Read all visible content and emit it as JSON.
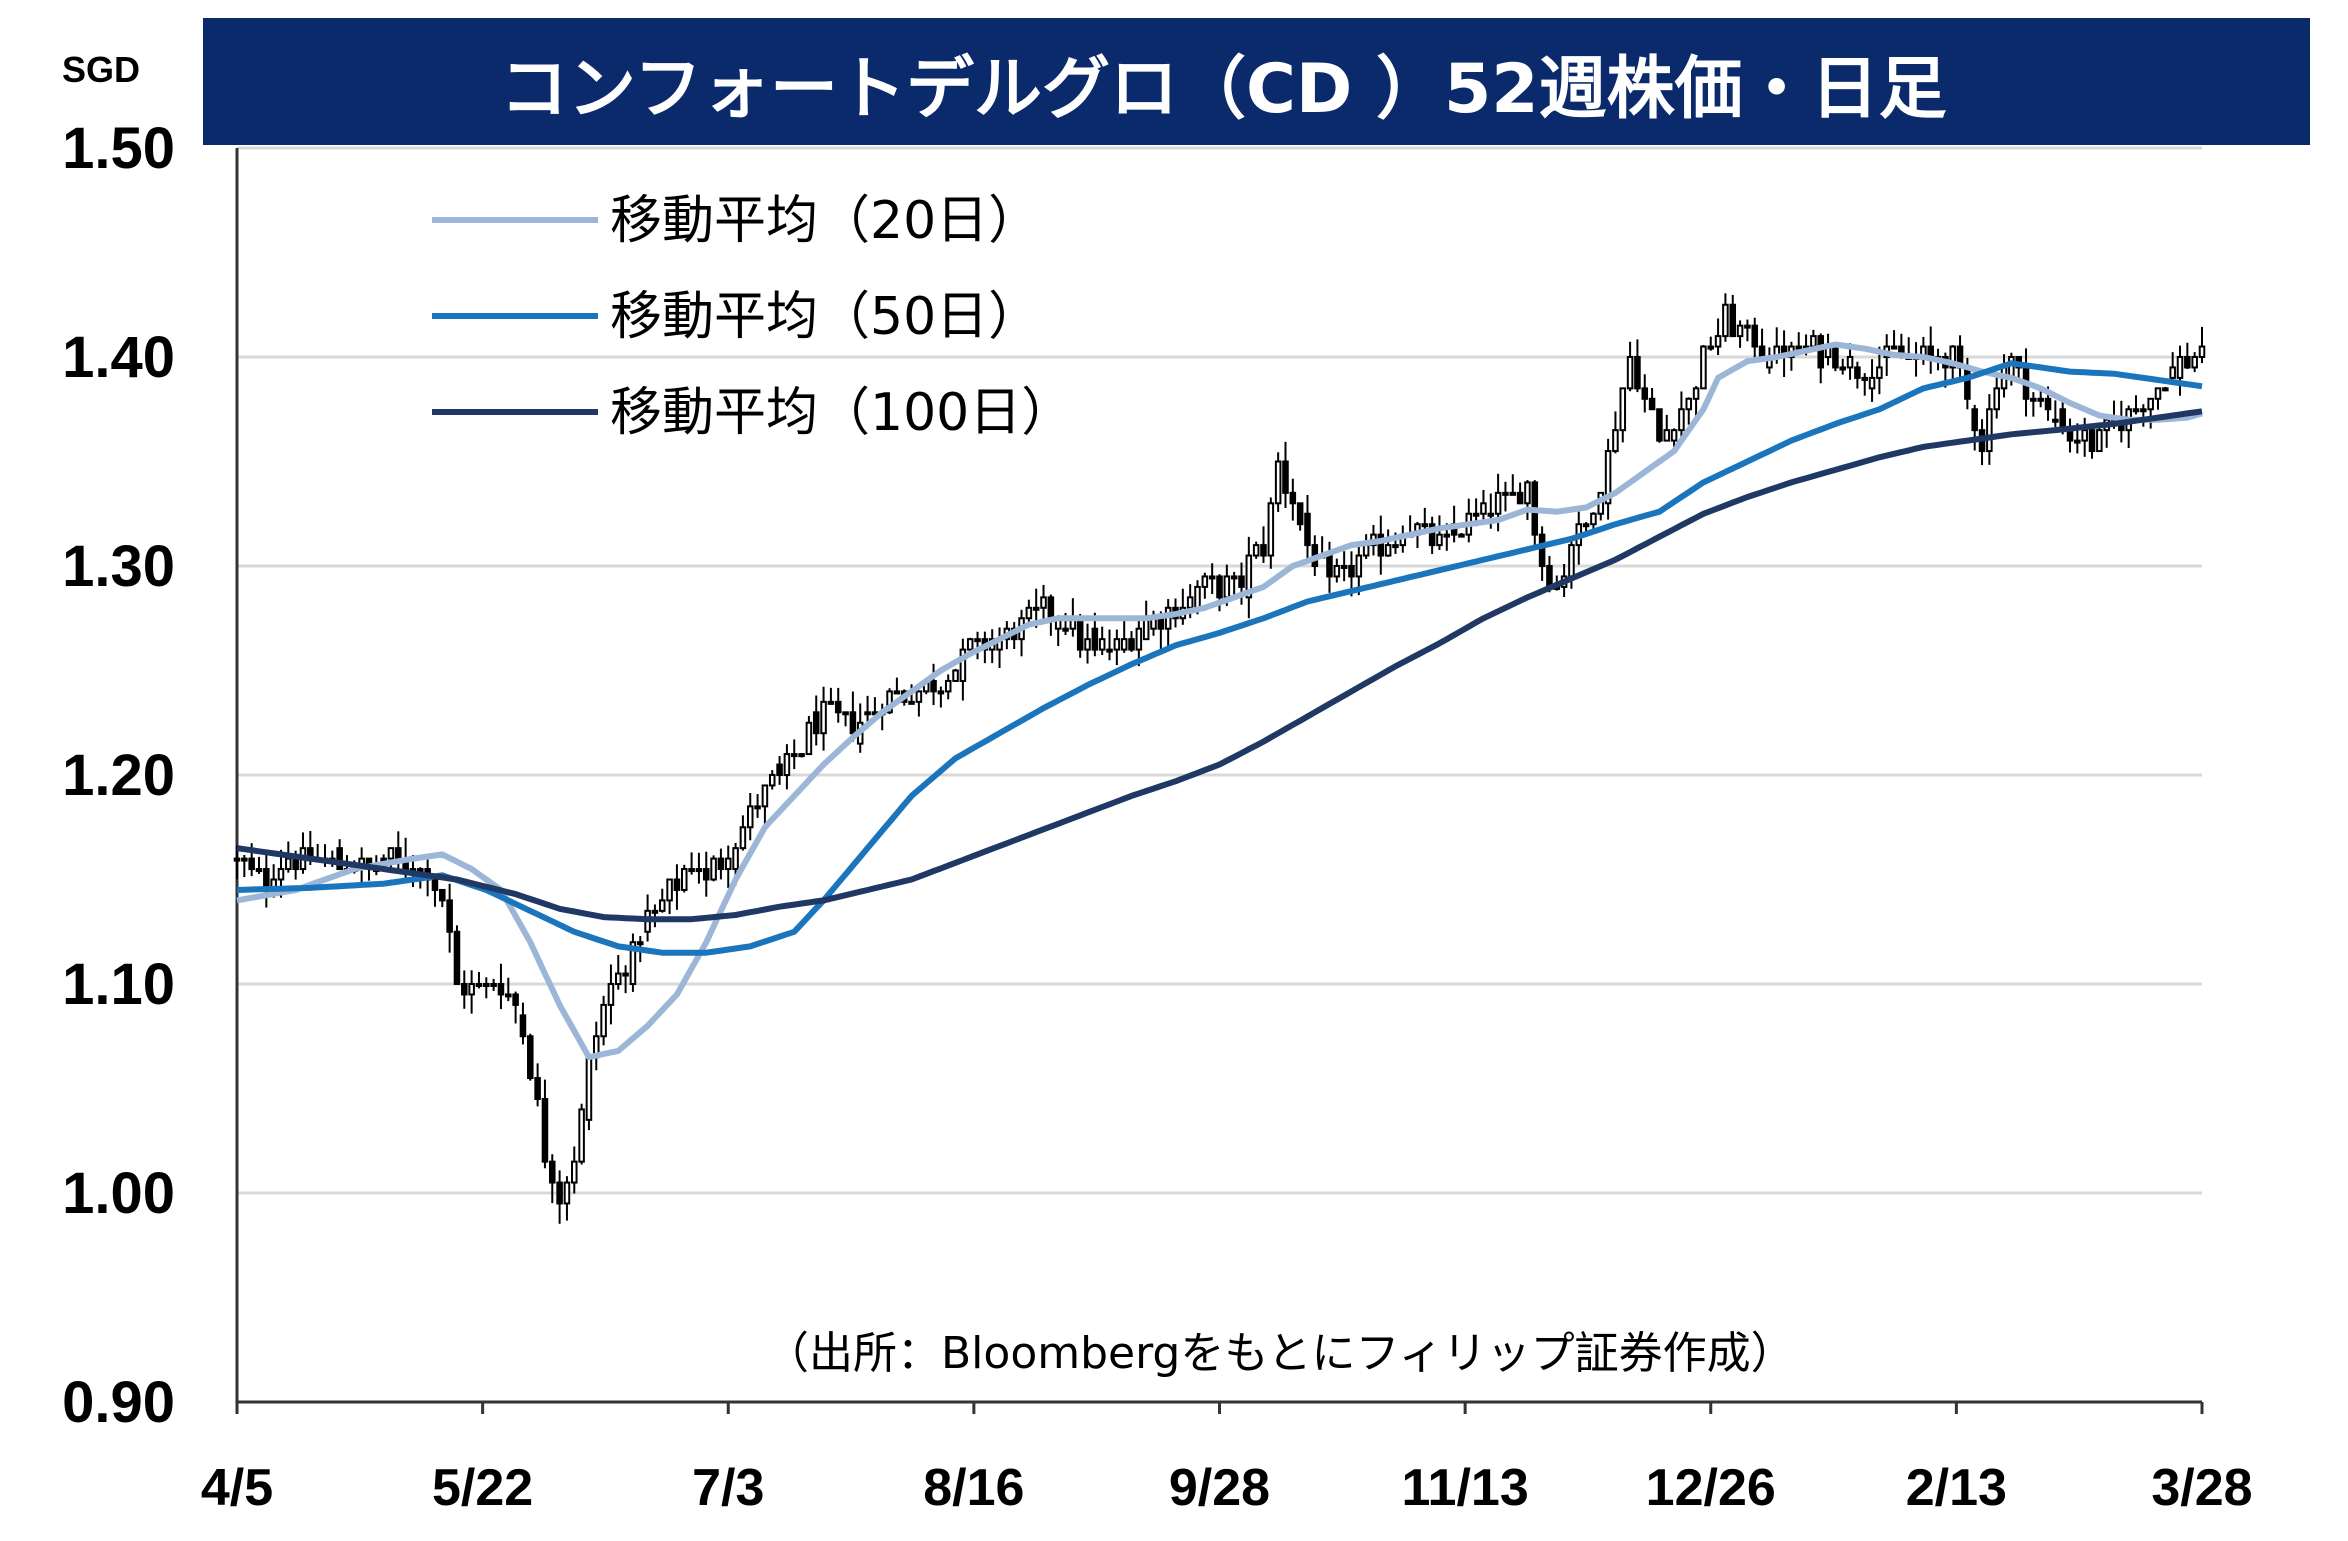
{
  "chart_data": {
    "type": "candlestick",
    "title": "コンフォートデルグロ（CD ）52週株価・日足",
    "unit_label": "SGD",
    "ylim": [
      0.9,
      1.5
    ],
    "y_ticks": [
      "1.50",
      "1.40",
      "1.30",
      "1.20",
      "1.10",
      "1.00",
      "0.90"
    ],
    "x_ticks": [
      "4/5",
      "5/22",
      "7/3",
      "8/16",
      "9/28",
      "11/13",
      "12/26",
      "2/13",
      "3/28"
    ],
    "grid": true,
    "legend_position": "top-left",
    "source": "（出所：Bloombergをもとにフィリップ証券作成）",
    "close_keypoints": [
      [
        0,
        1.16
      ],
      [
        4,
        1.15
      ],
      [
        7,
        1.16
      ],
      [
        12,
        1.16
      ],
      [
        17,
        1.155
      ],
      [
        22,
        1.16
      ],
      [
        26,
        1.155
      ],
      [
        28,
        1.14
      ],
      [
        30,
        1.1
      ],
      [
        33,
        1.1
      ],
      [
        36,
        1.1
      ],
      [
        38,
        1.09
      ],
      [
        40,
        1.06
      ],
      [
        42,
        1.02
      ],
      [
        44,
        1.0
      ],
      [
        46,
        1.02
      ],
      [
        48,
        1.06
      ],
      [
        50,
        1.09
      ],
      [
        53,
        1.11
      ],
      [
        56,
        1.13
      ],
      [
        58,
        1.14
      ],
      [
        60,
        1.15
      ],
      [
        62,
        1.16
      ],
      [
        64,
        1.15
      ],
      [
        68,
        1.17
      ],
      [
        72,
        1.19
      ],
      [
        76,
        1.21
      ],
      [
        80,
        1.23
      ],
      [
        84,
        1.225
      ],
      [
        88,
        1.235
      ],
      [
        92,
        1.24
      ],
      [
        96,
        1.245
      ],
      [
        100,
        1.26
      ],
      [
        104,
        1.265
      ],
      [
        108,
        1.275
      ],
      [
        112,
        1.28
      ],
      [
        116,
        1.26
      ],
      [
        120,
        1.26
      ],
      [
        124,
        1.275
      ],
      [
        128,
        1.28
      ],
      [
        132,
        1.29
      ],
      [
        136,
        1.29
      ],
      [
        140,
        1.31
      ],
      [
        142,
        1.35
      ],
      [
        144,
        1.33
      ],
      [
        146,
        1.31
      ],
      [
        149,
        1.29
      ],
      [
        152,
        1.3
      ],
      [
        156,
        1.31
      ],
      [
        160,
        1.32
      ],
      [
        164,
        1.31
      ],
      [
        168,
        1.32
      ],
      [
        172,
        1.33
      ],
      [
        176,
        1.34
      ],
      [
        178,
        1.3
      ],
      [
        180,
        1.29
      ],
      [
        182,
        1.31
      ],
      [
        184,
        1.32
      ],
      [
        186,
        1.34
      ],
      [
        188,
        1.37
      ],
      [
        190,
        1.4
      ],
      [
        192,
        1.38
      ],
      [
        194,
        1.36
      ],
      [
        196,
        1.37
      ],
      [
        198,
        1.38
      ],
      [
        200,
        1.4
      ],
      [
        203,
        1.42
      ],
      [
        206,
        1.41
      ],
      [
        210,
        1.4
      ],
      [
        214,
        1.405
      ],
      [
        218,
        1.4
      ],
      [
        222,
        1.395
      ],
      [
        226,
        1.4
      ],
      [
        230,
        1.4
      ],
      [
        234,
        1.4
      ],
      [
        236,
        1.38
      ],
      [
        238,
        1.36
      ],
      [
        240,
        1.39
      ],
      [
        242,
        1.4
      ],
      [
        245,
        1.38
      ],
      [
        248,
        1.37
      ],
      [
        251,
        1.36
      ],
      [
        254,
        1.36
      ],
      [
        257,
        1.37
      ],
      [
        260,
        1.38
      ],
      [
        263,
        1.39
      ],
      [
        266,
        1.4
      ],
      [
        268,
        1.405
      ]
    ],
    "series": [
      {
        "name": "移動平均（20日）",
        "color": "#9bb6d6",
        "keypoints": [
          [
            0,
            1.14
          ],
          [
            8,
            1.145
          ],
          [
            16,
            1.155
          ],
          [
            24,
            1.16
          ],
          [
            28,
            1.162
          ],
          [
            32,
            1.155
          ],
          [
            36,
            1.145
          ],
          [
            40,
            1.12
          ],
          [
            44,
            1.09
          ],
          [
            48,
            1.065
          ],
          [
            52,
            1.068
          ],
          [
            56,
            1.08
          ],
          [
            60,
            1.095
          ],
          [
            64,
            1.12
          ],
          [
            68,
            1.15
          ],
          [
            72,
            1.175
          ],
          [
            76,
            1.19
          ],
          [
            80,
            1.205
          ],
          [
            84,
            1.218
          ],
          [
            88,
            1.23
          ],
          [
            92,
            1.24
          ],
          [
            96,
            1.25
          ],
          [
            100,
            1.258
          ],
          [
            104,
            1.265
          ],
          [
            108,
            1.272
          ],
          [
            112,
            1.275
          ],
          [
            116,
            1.275
          ],
          [
            120,
            1.275
          ],
          [
            124,
            1.275
          ],
          [
            128,
            1.277
          ],
          [
            132,
            1.28
          ],
          [
            136,
            1.285
          ],
          [
            140,
            1.29
          ],
          [
            144,
            1.3
          ],
          [
            148,
            1.305
          ],
          [
            152,
            1.31
          ],
          [
            156,
            1.312
          ],
          [
            160,
            1.315
          ],
          [
            164,
            1.318
          ],
          [
            168,
            1.32
          ],
          [
            172,
            1.322
          ],
          [
            176,
            1.327
          ],
          [
            180,
            1.326
          ],
          [
            184,
            1.328
          ],
          [
            188,
            1.335
          ],
          [
            192,
            1.345
          ],
          [
            196,
            1.355
          ],
          [
            200,
            1.375
          ],
          [
            202,
            1.39
          ],
          [
            206,
            1.398
          ],
          [
            210,
            1.4
          ],
          [
            214,
            1.403
          ],
          [
            218,
            1.406
          ],
          [
            222,
            1.404
          ],
          [
            226,
            1.401
          ],
          [
            230,
            1.4
          ],
          [
            234,
            1.397
          ],
          [
            238,
            1.393
          ],
          [
            242,
            1.39
          ],
          [
            246,
            1.385
          ],
          [
            250,
            1.378
          ],
          [
            254,
            1.372
          ],
          [
            258,
            1.37
          ],
          [
            262,
            1.37
          ],
          [
            266,
            1.371
          ],
          [
            268,
            1.373
          ]
        ]
      },
      {
        "name": "移動平均（50日）",
        "color": "#1b75bc",
        "keypoints": [
          [
            0,
            1.145
          ],
          [
            10,
            1.146
          ],
          [
            20,
            1.148
          ],
          [
            28,
            1.152
          ],
          [
            34,
            1.145
          ],
          [
            40,
            1.135
          ],
          [
            46,
            1.125
          ],
          [
            52,
            1.118
          ],
          [
            58,
            1.115
          ],
          [
            64,
            1.115
          ],
          [
            70,
            1.118
          ],
          [
            76,
            1.125
          ],
          [
            80,
            1.14
          ],
          [
            86,
            1.165
          ],
          [
            92,
            1.19
          ],
          [
            98,
            1.208
          ],
          [
            104,
            1.22
          ],
          [
            110,
            1.232
          ],
          [
            116,
            1.243
          ],
          [
            122,
            1.253
          ],
          [
            128,
            1.262
          ],
          [
            134,
            1.268
          ],
          [
            140,
            1.275
          ],
          [
            146,
            1.283
          ],
          [
            152,
            1.288
          ],
          [
            158,
            1.293
          ],
          [
            164,
            1.298
          ],
          [
            170,
            1.303
          ],
          [
            176,
            1.308
          ],
          [
            182,
            1.313
          ],
          [
            188,
            1.32
          ],
          [
            194,
            1.326
          ],
          [
            200,
            1.34
          ],
          [
            206,
            1.35
          ],
          [
            212,
            1.36
          ],
          [
            218,
            1.368
          ],
          [
            224,
            1.375
          ],
          [
            230,
            1.385
          ],
          [
            236,
            1.39
          ],
          [
            242,
            1.397
          ],
          [
            246,
            1.395
          ],
          [
            250,
            1.393
          ],
          [
            256,
            1.392
          ],
          [
            262,
            1.389
          ],
          [
            268,
            1.386
          ]
        ]
      },
      {
        "name": "移動平均（100日）",
        "color": "#1f3864",
        "keypoints": [
          [
            0,
            1.165
          ],
          [
            10,
            1.16
          ],
          [
            20,
            1.155
          ],
          [
            30,
            1.15
          ],
          [
            38,
            1.143
          ],
          [
            44,
            1.136
          ],
          [
            50,
            1.132
          ],
          [
            56,
            1.131
          ],
          [
            62,
            1.131
          ],
          [
            68,
            1.133
          ],
          [
            74,
            1.137
          ],
          [
            80,
            1.14
          ],
          [
            86,
            1.145
          ],
          [
            92,
            1.15
          ],
          [
            98,
            1.158
          ],
          [
            104,
            1.166
          ],
          [
            110,
            1.174
          ],
          [
            116,
            1.182
          ],
          [
            122,
            1.19
          ],
          [
            128,
            1.197
          ],
          [
            134,
            1.205
          ],
          [
            140,
            1.216
          ],
          [
            146,
            1.228
          ],
          [
            152,
            1.24
          ],
          [
            158,
            1.252
          ],
          [
            164,
            1.263
          ],
          [
            170,
            1.275
          ],
          [
            176,
            1.285
          ],
          [
            182,
            1.294
          ],
          [
            188,
            1.303
          ],
          [
            194,
            1.314
          ],
          [
            200,
            1.325
          ],
          [
            206,
            1.333
          ],
          [
            212,
            1.34
          ],
          [
            218,
            1.346
          ],
          [
            224,
            1.352
          ],
          [
            230,
            1.357
          ],
          [
            236,
            1.36
          ],
          [
            242,
            1.363
          ],
          [
            248,
            1.365
          ],
          [
            256,
            1.368
          ],
          [
            262,
            1.371
          ],
          [
            268,
            1.374
          ]
        ]
      }
    ]
  }
}
